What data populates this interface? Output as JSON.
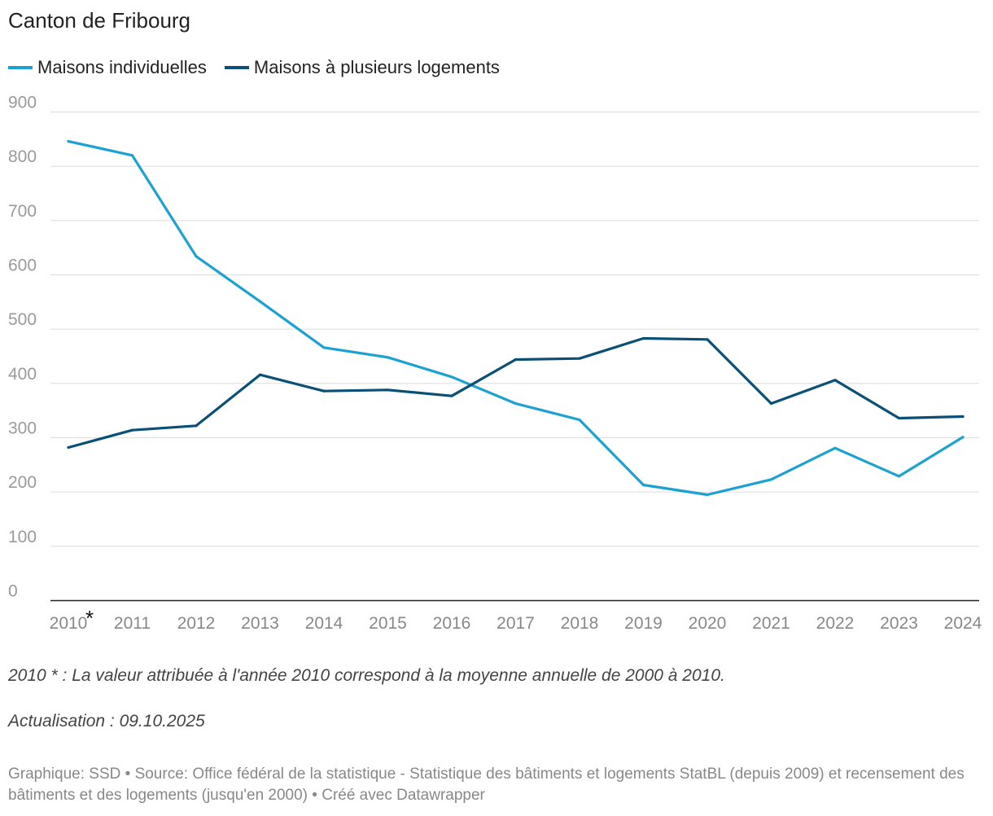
{
  "title": "Canton de Fribourg",
  "colors": {
    "individual": "#1ba1d2",
    "multi": "#0a5075",
    "grid": "#e0e0e0",
    "axis": "#222222",
    "tick": "#9a9a9a"
  },
  "chart_data": {
    "type": "line",
    "title": "Canton de Fribourg",
    "xlabel": "",
    "ylabel": "",
    "ylim": [
      0,
      900
    ],
    "yticks": [
      0,
      100,
      200,
      300,
      400,
      500,
      600,
      700,
      800,
      900
    ],
    "categories": [
      "2010",
      "2011",
      "2012",
      "2013",
      "2014",
      "2015",
      "2016",
      "2017",
      "2018",
      "2019",
      "2020",
      "2021",
      "2022",
      "2023",
      "2024"
    ],
    "asterisk_label": "*",
    "series": [
      {
        "name": "Maisons individuelles",
        "color": "#1ba1d2",
        "values": [
          846,
          820,
          634,
          551,
          466,
          448,
          412,
          363,
          333,
          213,
          195,
          223,
          281,
          229,
          301
        ]
      },
      {
        "name": "Maisons à plusieurs logements",
        "color": "#0a5075",
        "values": [
          282,
          314,
          322,
          416,
          386,
          388,
          377,
          444,
          446,
          483,
          481,
          363,
          406,
          336,
          339
        ]
      }
    ],
    "legend": "top-left",
    "grid": true
  },
  "notes": {
    "asterisk": "2010 * : La valeur attribuée à l'année 2010 correspond à la moyenne annuelle de 2000 à 2010.",
    "update": "Actualisation : 09.10.2025"
  },
  "footer": "Graphique: SSD • Source: Office fédéral de la statistique - Statistique des bâtiments et logements StatBL (depuis 2009) et recensement des bâtiments et des logements (jusqu'en 2000) • Créé avec Datawrapper"
}
